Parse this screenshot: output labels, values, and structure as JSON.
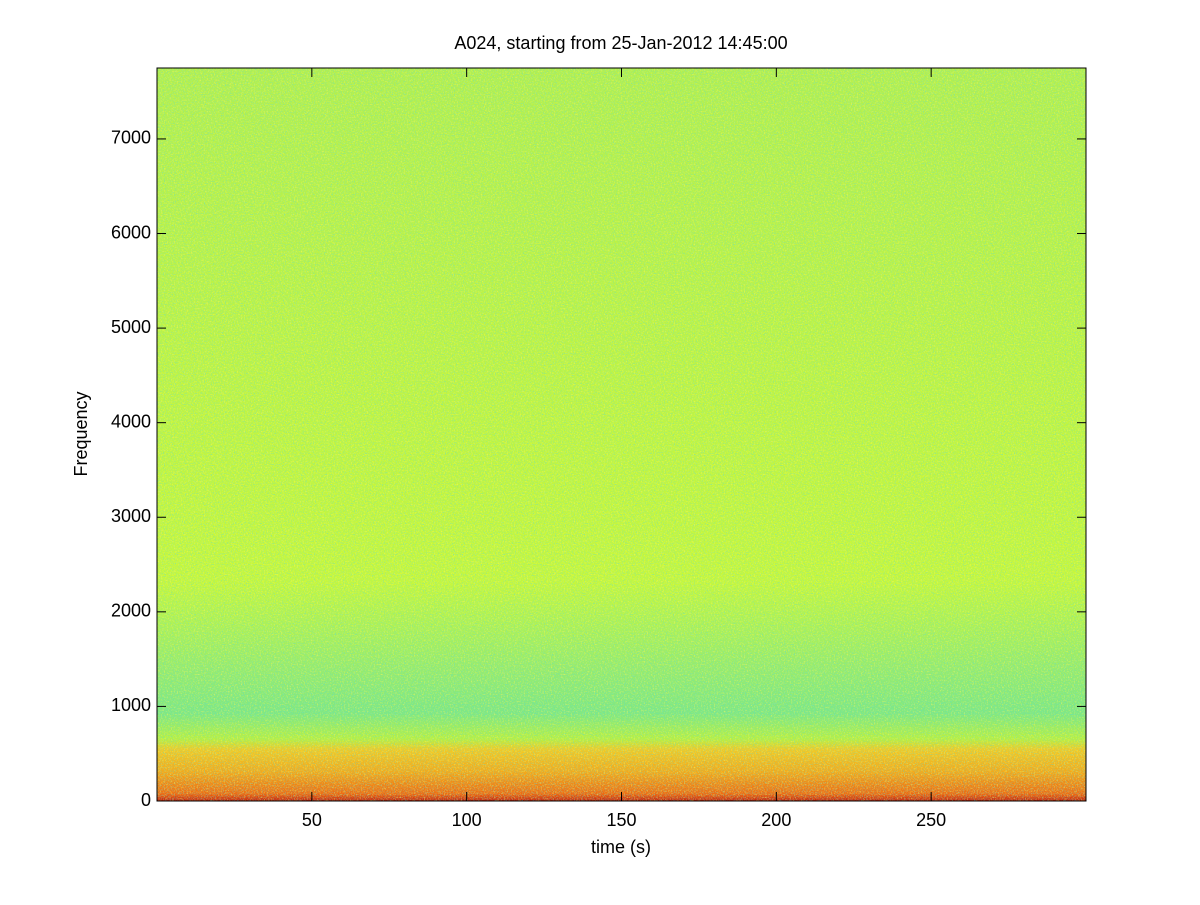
{
  "chart_data": {
    "type": "spectrogram",
    "title": "A024, starting from 25-Jan-2012 14:45:00",
    "x_label": "time (s)",
    "y_label": "Frequency",
    "xlim": [
      0,
      300
    ],
    "xticks": [
      50,
      100,
      150,
      200,
      250
    ],
    "ylim": [
      0,
      7750
    ],
    "yticks": [
      0,
      1000,
      2000,
      3000,
      4000,
      5000,
      6000,
      7000
    ]
  }
}
